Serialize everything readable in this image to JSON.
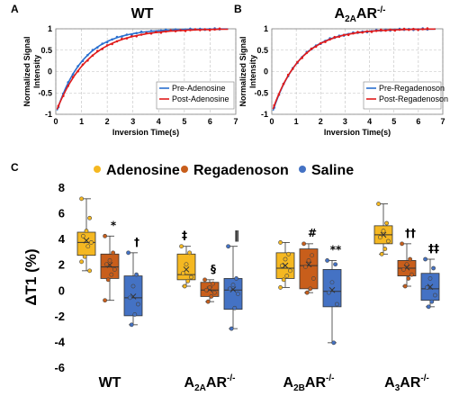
{
  "panels": {
    "a": {
      "letter": "A",
      "title": "WT"
    },
    "b": {
      "letter": "B",
      "title_main": "A",
      "title_sub": "2A",
      "title_rest": "AR",
      "title_sup": "-/-"
    },
    "c": {
      "letter": "C"
    }
  },
  "colors": {
    "pre": "#2a6fcf",
    "post": "#e01b1b",
    "fit": "#e66a6a",
    "adenosine": "#f5b821",
    "regadenoson": "#c85e1b",
    "saline": "#4472c4",
    "grid": "#bfbfbf"
  },
  "chart_data": [
    {
      "type": "line",
      "panel": "A",
      "title": "WT",
      "xlabel": "Inversion Time(s)",
      "ylabel": "Normalized Signal Intensity",
      "xlim": [
        0,
        7
      ],
      "ylim": [
        -1,
        1
      ],
      "xticks": [
        0,
        1,
        2,
        3,
        4,
        5,
        6,
        7
      ],
      "yticks": [
        -1,
        -0.5,
        0,
        0.5,
        1
      ],
      "grid": true,
      "legend_position": "bottom-right",
      "series": [
        {
          "name": "Pre-Adenosine",
          "color": "#2a6fcf",
          "T1": 1.05
        },
        {
          "name": "Post-Adenosine",
          "color": "#e01b1b",
          "T1": 1.25
        }
      ]
    },
    {
      "type": "line",
      "panel": "B",
      "title": "A2AAR-/-",
      "xlabel": "Inversion Time(s)",
      "ylabel": "Normalized Signal Intensity",
      "xlim": [
        0,
        7
      ],
      "ylim": [
        -1,
        1
      ],
      "xticks": [
        0,
        1,
        2,
        3,
        4,
        5,
        6,
        7
      ],
      "yticks": [
        -1,
        -0.5,
        0,
        0.5,
        1
      ],
      "grid": true,
      "legend_position": "bottom-right",
      "series": [
        {
          "name": "Pre-Regadenoson",
          "color": "#2a6fcf",
          "T1": 1.12
        },
        {
          "name": "Post-Regadenoson",
          "color": "#e01b1b",
          "T1": 1.15
        }
      ]
    },
    {
      "type": "box",
      "panel": "C",
      "ylabel": "ΔT1 (%)",
      "ylim": [
        -6,
        8
      ],
      "yticks": [
        -6,
        -4,
        -2,
        0,
        2,
        4,
        6,
        8
      ],
      "legend": [
        "Adenosine",
        "Regadenoson",
        "Saline"
      ],
      "legend_position": "top",
      "groups": [
        {
          "label": "WT",
          "sub": "",
          "sup": "",
          "boxes": [
            {
              "name": "Adenosine",
              "q1": 2.7,
              "median": 3.7,
              "q3": 4.5,
              "mean": 3.85,
              "whisker_low": 1.5,
              "whisker_high": 7.1,
              "points": [
                7.1,
                5.6,
                4.6,
                4.2,
                3.7,
                3.4,
                2.6,
                2.2,
                1.5
              ]
            },
            {
              "name": "Regadenoson",
              "q1": 0.9,
              "median": 1.8,
              "q3": 2.8,
              "mean": 1.95,
              "whisker_low": -0.8,
              "whisker_high": 4.2,
              "points": [
                4.2,
                2.9,
                2.3,
                2.0,
                1.6,
                1.2,
                0.8,
                -0.8
              ]
            },
            {
              "name": "Saline",
              "q1": -2.0,
              "median": -0.6,
              "q3": 1.1,
              "mean": -0.5,
              "whisker_low": -2.7,
              "whisker_high": 2.9,
              "points": [
                2.9,
                1.2,
                0.3,
                -0.6,
                -1.1,
                -1.9,
                -2.7
              ]
            }
          ],
          "annotations": [
            "*",
            "†"
          ]
        },
        {
          "label": "A",
          "sub": "2A",
          "sup": "-/-",
          "boxes": [
            {
              "name": "Adenosine",
              "q1": 0.8,
              "median": 1.2,
              "q3": 2.8,
              "mean": 1.6,
              "whisker_low": 0.3,
              "whisker_high": 3.4,
              "points": [
                3.4,
                2.9,
                2.0,
                1.3,
                1.0,
                0.7,
                0.3
              ]
            },
            {
              "name": "Regadenoson",
              "q1": -0.5,
              "median": 0.0,
              "q3": 0.6,
              "mean": 0.05,
              "whisker_low": -0.9,
              "whisker_high": 0.8,
              "points": [
                0.8,
                0.5,
                0.2,
                0.0,
                -0.2,
                -0.5,
                -0.9
              ]
            },
            {
              "name": "Saline",
              "q1": -1.5,
              "median": 0.0,
              "q3": 0.9,
              "mean": 0.05,
              "whisker_low": -3.0,
              "whisker_high": 3.4,
              "points": [
                3.4,
                0.9,
                0.4,
                0.1,
                -0.3,
                -1.4,
                -3.0
              ]
            }
          ],
          "annotations": [
            "‡",
            "§",
            "‖"
          ]
        },
        {
          "label": "A",
          "sub": "2B",
          "sup": "-/-",
          "boxes": [
            {
              "name": "Adenosine",
              "q1": 0.9,
              "median": 1.7,
              "q3": 2.9,
              "mean": 1.9,
              "whisker_low": 0.2,
              "whisker_high": 3.7,
              "points": [
                3.7,
                2.8,
                2.4,
                1.9,
                1.5,
                1.1,
                0.8,
                0.2
              ]
            },
            {
              "name": "Regadenoson",
              "q1": 0.1,
              "median": 1.9,
              "q3": 3.2,
              "mean": 2.0,
              "whisker_low": -0.2,
              "whisker_high": 3.6,
              "points": [
                3.6,
                2.7,
                2.3,
                1.8,
                0.9,
                0.1,
                -0.2
              ]
            },
            {
              "name": "Saline",
              "q1": -1.3,
              "median": -0.1,
              "q3": 1.6,
              "mean": 0.0,
              "whisker_low": -4.1,
              "whisker_high": 2.3,
              "points": [
                2.3,
                2.0,
                0.6,
                -0.2,
                -1.1,
                -4.1
              ]
            }
          ],
          "annotations": [
            "#",
            "**"
          ]
        },
        {
          "label": "A",
          "sub": "3",
          "sup": "-/-",
          "boxes": [
            {
              "name": "Adenosine",
              "q1": 3.6,
              "median": 4.3,
              "q3": 5.0,
              "mean": 4.3,
              "whisker_low": 2.8,
              "whisker_high": 6.7,
              "points": [
                6.7,
                5.2,
                4.6,
                4.1,
                3.8,
                3.2,
                2.8
              ]
            },
            {
              "name": "Regadenoson",
              "q1": 1.1,
              "median": 1.7,
              "q3": 2.3,
              "mean": 1.75,
              "whisker_low": 0.3,
              "whisker_high": 3.6,
              "points": [
                3.6,
                2.4,
                2.0,
                1.6,
                1.2,
                0.9,
                0.3
              ]
            },
            {
              "name": "Saline",
              "q1": -0.8,
              "median": 0.1,
              "q3": 1.3,
              "mean": 0.25,
              "whisker_low": -1.3,
              "whisker_high": 2.4,
              "points": [
                2.4,
                1.7,
                0.9,
                0.2,
                -0.4,
                -0.9,
                -1.3
              ]
            }
          ],
          "annotations": [
            "††",
            "‡‡"
          ]
        }
      ]
    }
  ]
}
